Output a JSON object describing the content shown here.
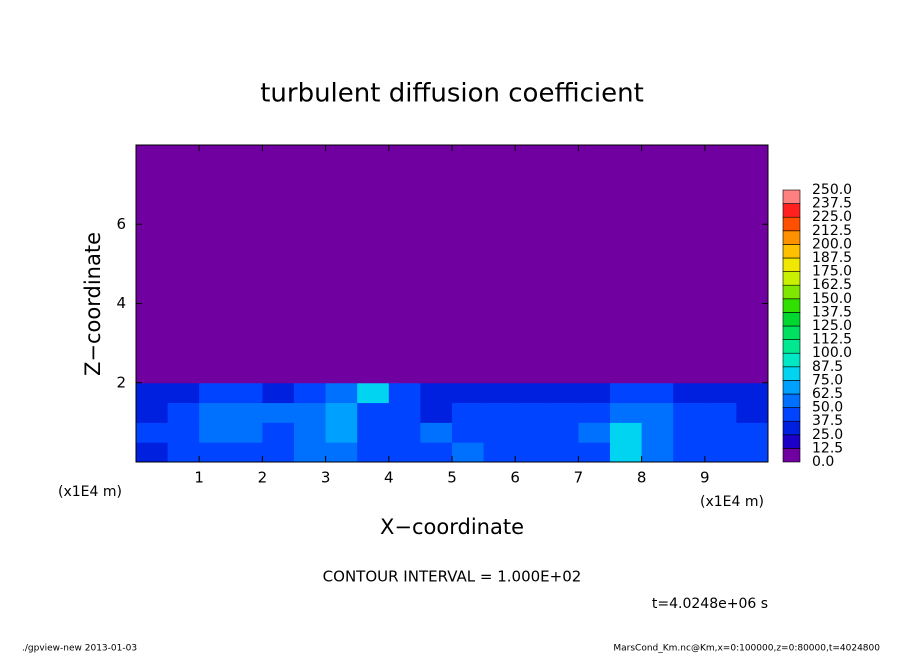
{
  "chart_data": {
    "type": "heatmap",
    "title": "turbulent diffusion coefficient",
    "x_label": "X−coordinate",
    "y_label": "Z−coordinate",
    "x_unit_left": "(x1E4 m)",
    "x_unit_right": "(x1E4 m)",
    "contour_interval": "CONTOUR INTERVAL = 1.000E+02",
    "time": "t=4.0248e+06 s",
    "footer_left": "./gpview-new   2013-01-03",
    "footer_right": "MarsCond_Km.nc@Km,x=0:100000,z=0:80000,t=4024800",
    "xlim": [
      0,
      10
    ],
    "ylim": [
      0,
      8
    ],
    "xticks": [
      1,
      2,
      3,
      4,
      5,
      6,
      7,
      8,
      9
    ],
    "yticks": [
      2,
      4,
      6
    ],
    "x_edges": [
      0,
      0.5,
      1,
      1.5,
      2,
      2.5,
      3,
      3.5,
      4,
      4.5,
      5,
      5.5,
      6,
      6.5,
      7,
      7.5,
      8,
      8.5,
      9,
      9.5,
      10
    ],
    "y_edges": [
      0,
      0.5,
      1,
      1.5,
      2,
      8
    ],
    "values": [
      [
        37,
        40,
        42,
        38,
        45,
        55,
        60,
        42,
        40,
        45,
        50,
        45,
        40,
        38,
        40,
        85,
        60,
        42,
        40,
        38
      ],
      [
        40,
        45,
        50,
        55,
        45,
        60,
        70,
        40,
        45,
        50,
        42,
        40,
        45,
        40,
        50,
        75,
        55,
        45,
        42,
        40
      ],
      [
        35,
        45,
        55,
        60,
        50,
        55,
        65,
        45,
        40,
        35,
        38,
        40,
        42,
        40,
        45,
        60,
        50,
        40,
        38,
        35
      ],
      [
        30,
        35,
        40,
        45,
        35,
        40,
        55,
        80,
        45,
        35,
        30,
        32,
        35,
        30,
        35,
        40,
        38,
        35,
        30,
        28
      ],
      [
        0,
        0,
        0,
        0,
        0,
        0,
        0,
        0,
        0,
        0,
        0,
        0,
        0,
        0,
        0,
        0,
        0,
        0,
        0,
        0
      ]
    ],
    "levels": [
      {
        "value": 0,
        "label": "0.0"
      },
      12.5,
      {
        "value": 25,
        "label": "25.0"
      },
      37.5,
      {
        "value": 50,
        "label": "50.0"
      },
      62.5,
      {
        "value": 75,
        "label": "75.0"
      },
      87.5,
      {
        "value": 100,
        "label": "100.0"
      },
      112.5,
      {
        "value": 125,
        "label": "125.0"
      },
      137.5,
      {
        "value": 150,
        "label": "150.0"
      },
      162.5,
      {
        "value": 175,
        "label": "175.0"
      },
      187.5,
      {
        "value": 200,
        "label": "200.0"
      },
      212.5,
      {
        "value": 225,
        "label": "225.0"
      },
      237.5,
      {
        "value": 250,
        "label": "250.0"
      }
    ],
    "colors": [
      "#7000a0",
      "#1c00c8",
      "#0020e0",
      "#0044ff",
      "#0070ff",
      "#00a0ff",
      "#00d4f0",
      "#00e8c4",
      "#00e890",
      "#00e060",
      "#00d830",
      "#30e000",
      "#80e800",
      "#c8f000",
      "#f0e800",
      "#ffc000",
      "#ff9000",
      "#ff5000",
      "#ff2020",
      "#ff8080"
    ]
  }
}
